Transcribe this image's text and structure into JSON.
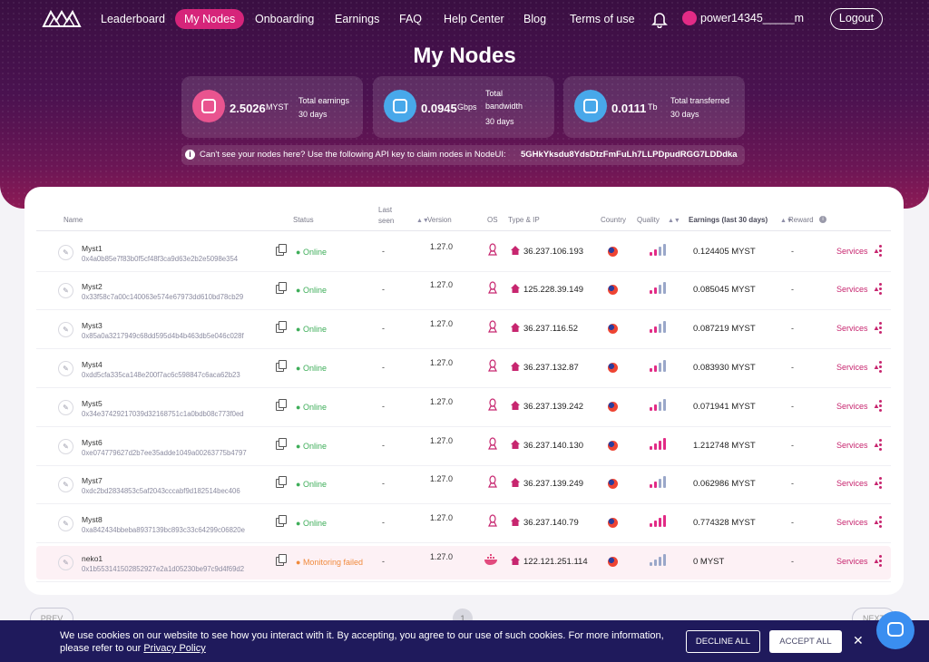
{
  "nav": {
    "items": [
      {
        "label": "Leaderboard",
        "active": false
      },
      {
        "label": "My Nodes",
        "active": true
      },
      {
        "label": "Onboarding",
        "active": false
      },
      {
        "label": "Earnings",
        "active": false
      },
      {
        "label": "FAQ",
        "active": false
      },
      {
        "label": "Help Center",
        "active": false
      },
      {
        "label": "Blog",
        "active": false
      },
      {
        "label": "Terms of use",
        "active": false
      }
    ],
    "user": "power14345_____m",
    "logout": "Logout"
  },
  "page_title": "My Nodes",
  "stats": [
    {
      "value": "2.5026",
      "unit": "MYST",
      "label": "Total earnings",
      "sublabel": "30 days",
      "icon": "wallet-icon",
      "color": "#e9548f"
    },
    {
      "value": "0.0945",
      "unit": "Gbps",
      "label": "Total bandwidth",
      "sublabel": "30 days",
      "icon": "bandwidth-icon",
      "color": "#48a8ea"
    },
    {
      "value": "0.0111",
      "unit": "Tb",
      "label": "Total transferred",
      "sublabel": "30 days",
      "icon": "cloud-transfer-icon",
      "color": "#48a8ea"
    }
  ],
  "api_notice": {
    "text": "Can't see your nodes here? Use the following API key to claim nodes in NodeUI:",
    "key": "5GHkYksdu8YdsDtzFmFuLh7LLPDpudRGG7LDDdka"
  },
  "table": {
    "headers": {
      "name": "Name",
      "status": "Status",
      "last_seen": "Last seen",
      "version": "Version",
      "os": "OS",
      "type_ip": "Type & IP",
      "country": "Country",
      "quality": "Quality",
      "earnings": "Earnings (last 30 days)",
      "reward": "Reward"
    },
    "rows": [
      {
        "name": "Myst1",
        "id": "0x4a0b85e7f83b0f5cf48f3ca9d63e2b2e5098e354",
        "status": "Online",
        "last_seen": "-",
        "version": "1.27.0",
        "os": "linux",
        "ip": "36.237.106.193",
        "earnings": "0.124405 MYST",
        "reward": "-",
        "services": "Services"
      },
      {
        "name": "Myst2",
        "id": "0x33f58c7a00c140063e574e67973dd610bd78cb29",
        "status": "Online",
        "last_seen": "-",
        "version": "1.27.0",
        "os": "linux",
        "ip": "125.228.39.149",
        "earnings": "0.085045 MYST",
        "reward": "-",
        "services": "Services"
      },
      {
        "name": "Myst3",
        "id": "0x85a0a3217949c68dd595d4b4b463db5e046c028f",
        "status": "Online",
        "last_seen": "-",
        "version": "1.27.0",
        "os": "linux",
        "ip": "36.237.116.52",
        "earnings": "0.087219 MYST",
        "reward": "-",
        "services": "Services"
      },
      {
        "name": "Myst4",
        "id": "0xdd5cfa335ca148e200f7ac6c598847c6aca62b23",
        "status": "Online",
        "last_seen": "-",
        "version": "1.27.0",
        "os": "linux",
        "ip": "36.237.132.87",
        "earnings": "0.083930 MYST",
        "reward": "-",
        "services": "Services"
      },
      {
        "name": "Myst5",
        "id": "0x34e37429217039d32168751c1a0bdb08c773f0ed",
        "status": "Online",
        "last_seen": "-",
        "version": "1.27.0",
        "os": "linux",
        "ip": "36.237.139.242",
        "earnings": "0.071941 MYST",
        "reward": "-",
        "services": "Services"
      },
      {
        "name": "Myst6",
        "id": "0xe074779627d2b7ee35adde1049a00263775b4797",
        "status": "Online",
        "last_seen": "-",
        "version": "1.27.0",
        "os": "linux",
        "ip": "36.237.140.130",
        "earnings": "1.212748 MYST",
        "reward": "-",
        "services": "Services"
      },
      {
        "name": "Myst7",
        "id": "0xdc2bd2834853c5af2043cccabf9d182514bec406",
        "status": "Online",
        "last_seen": "-",
        "version": "1.27.0",
        "os": "linux",
        "ip": "36.237.139.249",
        "earnings": "0.062986 MYST",
        "reward": "-",
        "services": "Services"
      },
      {
        "name": "Myst8",
        "id": "0xa842434bbeba8937139bc893c33c64299c06820e",
        "status": "Online",
        "last_seen": "-",
        "version": "1.27.0",
        "os": "linux",
        "ip": "36.237.140.79",
        "earnings": "0.774328 MYST",
        "reward": "-",
        "services": "Services"
      },
      {
        "name": "neko1",
        "id": "0x1b553141502852927e2a1d05230be97c9d4f69d2",
        "status": "Monitoring failed",
        "last_seen": "-",
        "version": "1.27.0",
        "os": "docker",
        "ip": "122.121.251.114",
        "earnings": "0 MYST",
        "reward": "-",
        "services": "Services"
      }
    ]
  },
  "pagination": {
    "prev": "PREV",
    "page": "1",
    "next": "NEXT"
  },
  "cookie": {
    "text": "We use cookies on our website to see how you interact with it. By accepting, you agree to our use of such cookies. For more information, please refer to our",
    "link": "Privacy Policy",
    "decline": "DECLINE ALL",
    "accept": "ACCEPT ALL"
  },
  "colors": {
    "accent": "#d6247a",
    "online": "#3fae5a",
    "failed": "#f08a3c",
    "cookie_bg": "#1f1a5c"
  }
}
